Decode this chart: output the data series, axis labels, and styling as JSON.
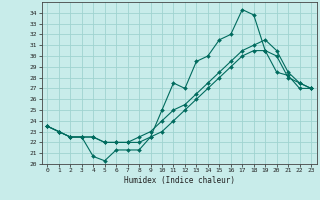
{
  "xlabel": "Humidex (Indice chaleur)",
  "background_color": "#c8ecea",
  "grid_color": "#a0d4d0",
  "line_color": "#006b5e",
  "xlim": [
    -0.5,
    23.5
  ],
  "ylim": [
    20,
    35
  ],
  "x_ticks": [
    0,
    1,
    2,
    3,
    4,
    5,
    6,
    7,
    8,
    9,
    10,
    11,
    12,
    13,
    14,
    15,
    16,
    17,
    18,
    19,
    20,
    21,
    22,
    23
  ],
  "y_ticks": [
    20,
    21,
    22,
    23,
    24,
    25,
    26,
    27,
    28,
    29,
    30,
    31,
    32,
    33,
    34
  ],
  "line1_x": [
    0,
    1,
    2,
    3,
    4,
    5,
    6,
    7,
    8,
    9,
    10,
    11,
    12,
    13,
    14,
    15,
    16,
    17,
    18,
    19,
    20,
    21,
    22,
    23
  ],
  "line1_y": [
    23.5,
    23.0,
    22.5,
    22.5,
    20.7,
    20.3,
    21.3,
    21.3,
    21.3,
    22.5,
    25.0,
    27.5,
    27.0,
    29.5,
    30.0,
    31.5,
    32.0,
    34.3,
    33.8,
    30.5,
    28.5,
    28.2,
    27.0,
    27.0
  ],
  "line2_x": [
    0,
    1,
    2,
    3,
    4,
    5,
    6,
    7,
    8,
    9,
    10,
    11,
    12,
    13,
    14,
    15,
    16,
    17,
    18,
    19,
    20,
    21,
    22,
    23
  ],
  "line2_y": [
    23.5,
    23.0,
    22.5,
    22.5,
    22.5,
    22.0,
    22.0,
    22.0,
    22.5,
    23.0,
    24.0,
    25.0,
    25.5,
    26.5,
    27.5,
    28.5,
    29.5,
    30.5,
    31.0,
    31.5,
    30.5,
    28.5,
    27.5,
    27.0
  ],
  "line3_x": [
    0,
    1,
    2,
    3,
    4,
    5,
    6,
    7,
    8,
    9,
    10,
    11,
    12,
    13,
    14,
    15,
    16,
    17,
    18,
    19,
    20,
    21,
    22,
    23
  ],
  "line3_y": [
    23.5,
    23.0,
    22.5,
    22.5,
    22.5,
    22.0,
    22.0,
    22.0,
    22.0,
    22.5,
    23.0,
    24.0,
    25.0,
    26.0,
    27.0,
    28.0,
    29.0,
    30.0,
    30.5,
    30.5,
    30.0,
    28.0,
    27.5,
    27.0
  ]
}
